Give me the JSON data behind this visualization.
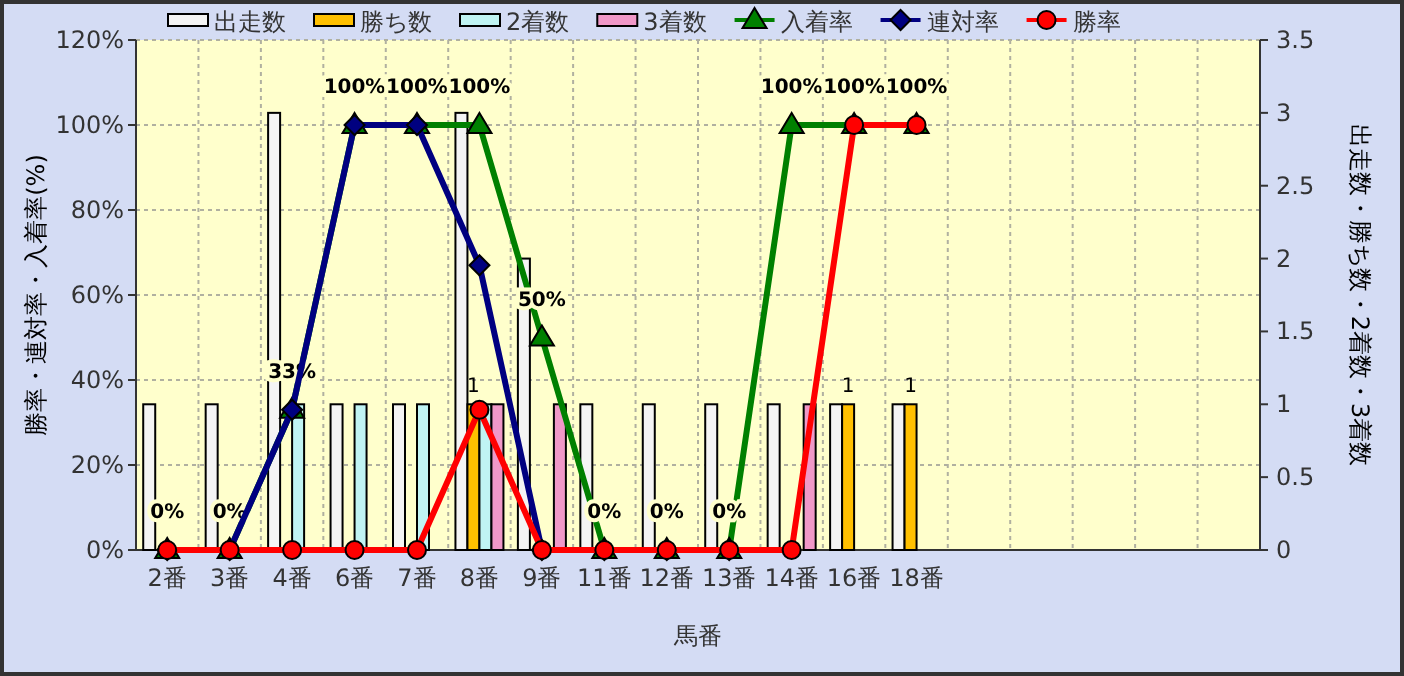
{
  "chart_data": {
    "type": "bar",
    "xlabel": "馬番",
    "ylabel": "勝率・連対率・入着率(%)",
    "y2label": "出走数・勝ち数・2着数・3着数",
    "categories": [
      "2番",
      "3番",
      "4番",
      "6番",
      "7番",
      "8番",
      "9番",
      "11番",
      "12番",
      "13番",
      "14番",
      "16番",
      "18番",
      null,
      null,
      null,
      null,
      null
    ],
    "series": [
      {
        "name": "出走数",
        "type": "bar",
        "axis": "y2",
        "color": "#f4f4f4",
        "values": [
          1,
          1,
          3,
          1,
          1,
          3,
          2,
          1,
          1,
          1,
          1,
          1,
          1,
          null,
          null,
          null,
          null,
          null
        ]
      },
      {
        "name": "勝ち数",
        "type": "bar",
        "axis": "y2",
        "color": "#ffc000",
        "values": [
          0,
          0,
          0,
          0,
          0,
          1,
          0,
          0,
          0,
          0,
          0,
          1,
          1,
          null,
          null,
          null,
          null,
          null
        ],
        "value_labels": [
          null,
          null,
          null,
          null,
          null,
          "1",
          null,
          null,
          null,
          null,
          null,
          "1",
          "1",
          null,
          null,
          null,
          null,
          null
        ]
      },
      {
        "name": "2着数",
        "type": "bar",
        "axis": "y2",
        "color": "#c0f4f4",
        "values": [
          0,
          0,
          1,
          1,
          1,
          1,
          0,
          0,
          0,
          0,
          0,
          0,
          0,
          null,
          null,
          null,
          null,
          null
        ]
      },
      {
        "name": "3着数",
        "type": "bar",
        "axis": "y2",
        "color": "#f098c8",
        "values": [
          0,
          0,
          0,
          0,
          0,
          1,
          1,
          0,
          0,
          0,
          1,
          0,
          0,
          null,
          null,
          null,
          null,
          null
        ]
      },
      {
        "name": "入着率",
        "type": "line",
        "marker": "triangle",
        "color": "#008000",
        "values": [
          0,
          0,
          33,
          100,
          100,
          100,
          50,
          0,
          0,
          0,
          100,
          100,
          100,
          null,
          null,
          null,
          null,
          null
        ],
        "value_labels": [
          "0%",
          "0%",
          "33%",
          "100%",
          "100%",
          "100%",
          "50%",
          "0%",
          "0%",
          "0%",
          "100%",
          "100%",
          "100%",
          null,
          null,
          null,
          null,
          null
        ]
      },
      {
        "name": "連対率",
        "type": "line",
        "marker": "diamond",
        "color": "#000080",
        "values": [
          0,
          0,
          33,
          100,
          100,
          67,
          0,
          0,
          0,
          0,
          null,
          null,
          null,
          null,
          null,
          null,
          null,
          null
        ]
      },
      {
        "name": "勝率",
        "type": "line",
        "marker": "circle",
        "color": "#ff0000",
        "values": [
          0,
          0,
          0,
          0,
          0,
          33,
          0,
          0,
          0,
          0,
          0,
          100,
          100,
          null,
          null,
          null,
          null,
          null
        ]
      }
    ],
    "ylim": [
      0,
      120
    ],
    "yticks": [
      {
        "value": 0,
        "label": "0%"
      },
      {
        "value": 20,
        "label": "20%"
      },
      {
        "value": 40,
        "label": "40%"
      },
      {
        "value": 60,
        "label": "60%"
      },
      {
        "value": 80,
        "label": "80%"
      },
      {
        "value": 100,
        "label": "100%"
      },
      {
        "value": 120,
        "label": "120%"
      }
    ],
    "y2lim": [
      0,
      3.5
    ],
    "y2ticks": [
      0,
      0.5,
      1,
      1.5,
      2,
      2.5,
      3,
      3.5
    ],
    "grid": true,
    "legend": "top"
  }
}
